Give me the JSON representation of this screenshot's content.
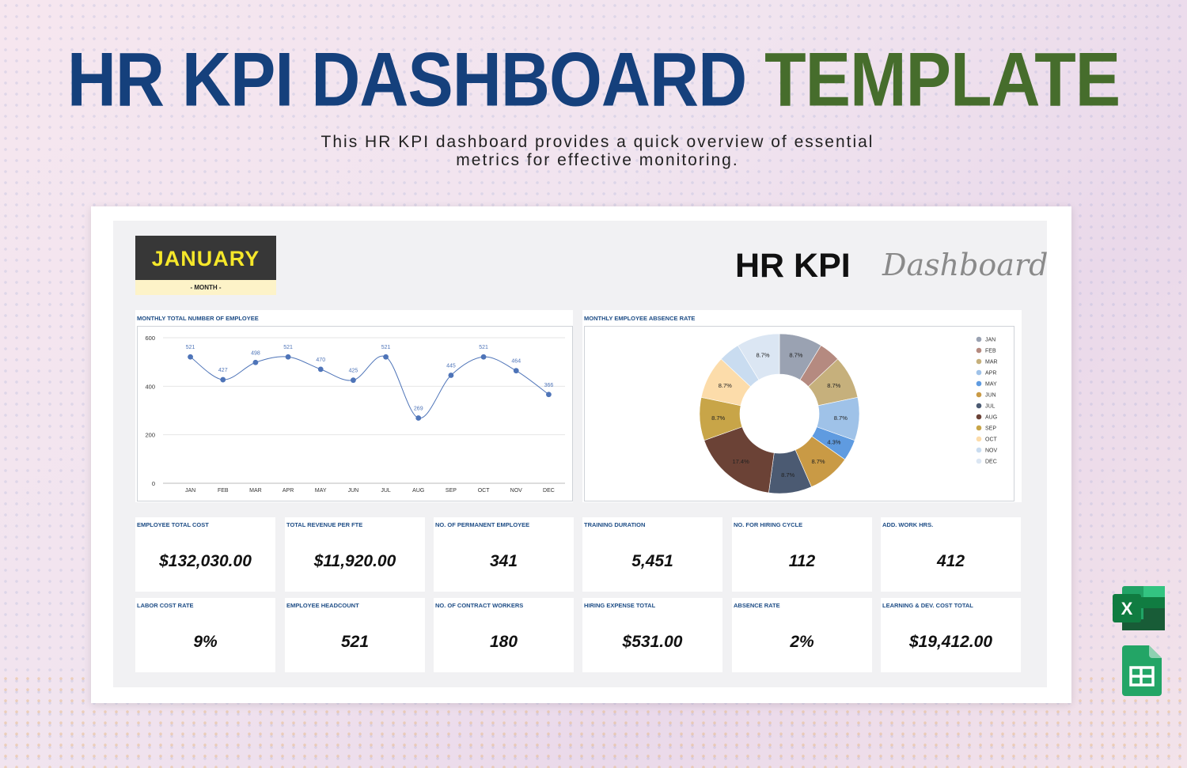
{
  "header": {
    "headline_part1": "HR KPI DASHBOARD",
    "headline_part2": "TEMPLATE",
    "subtitle_line1": "This HR KPI dashboard provides a quick overview of essential",
    "subtitle_line2": "metrics for effective monitoring."
  },
  "dashboard": {
    "month_value": "JANUARY",
    "month_label": "- MONTH -",
    "title_main": "HR KPI",
    "title_script": "Dashboard"
  },
  "colors": {
    "headline_blue": "#15407c",
    "headline_green": "#466d2c",
    "month_bg": "#373737",
    "month_text": "#f5e72a",
    "label_blue": "#1e4d86",
    "line_color": "#4e74b8"
  },
  "chart_data": [
    {
      "type": "line",
      "title": "MONTHLY TOTAL NUMBER OF EMPLOYEE",
      "categories": [
        "JAN",
        "FEB",
        "MAR",
        "APR",
        "MAY",
        "JUN",
        "JUL",
        "AUG",
        "SEP",
        "OCT",
        "NOV",
        "DEC"
      ],
      "values": [
        521,
        427,
        498,
        521,
        470,
        425,
        521,
        269,
        445,
        521,
        464,
        366
      ],
      "data_labels": [
        "521",
        "427",
        "498",
        "521",
        "470",
        "425",
        "521",
        "269",
        "445",
        "521",
        "464",
        "366"
      ],
      "y_ticks": [
        "0",
        "200",
        "400",
        "600"
      ],
      "ylim": [
        0,
        600
      ],
      "grid": true,
      "smooth": true
    },
    {
      "type": "pie",
      "donut": true,
      "title": "MONTHLY EMPLOYEE ABSENCE RATE",
      "labels": [
        "JAN",
        "FEB",
        "MAR",
        "APR",
        "MAY",
        "JUN",
        "JUL",
        "AUG",
        "SEP",
        "OCT",
        "NOV",
        "DEC"
      ],
      "values": [
        8.7,
        4.3,
        8.7,
        8.7,
        4.3,
        8.7,
        8.7,
        17.4,
        8.7,
        8.7,
        4.3,
        8.7
      ],
      "slice_labels": [
        "8.7%",
        "",
        "8.7%",
        "8.7%",
        "4.3%",
        "8.7%",
        "8.7%",
        "17.4%",
        "8.7%",
        "8.7%",
        "",
        "8.7%"
      ],
      "colors": [
        "#9aa2b2",
        "#b58a80",
        "#c6b07c",
        "#9fc2e8",
        "#5f9be0",
        "#c99a45",
        "#4b5a72",
        "#6b4236",
        "#c8a548",
        "#fcdcaa",
        "#c9dcf0",
        "#dbe6f3"
      ],
      "legend_position": "right"
    }
  ],
  "kpis": [
    {
      "label": "EMPLOYEE TOTAL COST",
      "value": "$132,030.00"
    },
    {
      "label": "TOTAL REVENUE PER FTE",
      "value": "$11,920.00"
    },
    {
      "label": "NO. OF PERMANENT EMPLOYEE",
      "value": "341"
    },
    {
      "label": "TRAINING DURATION",
      "value": "5,451"
    },
    {
      "label": "NO. FOR HIRING CYCLE",
      "value": "112"
    },
    {
      "label": "ADD. WORK HRS.",
      "value": "412"
    },
    {
      "label": "LABOR COST RATE",
      "value": "9%"
    },
    {
      "label": "EMPLOYEE HEADCOUNT",
      "value": "521"
    },
    {
      "label": "NO. OF CONTRACT WORKERS",
      "value": "180"
    },
    {
      "label": "HIRING EXPENSE TOTAL",
      "value": "$531.00"
    },
    {
      "label": "ABSENCE RATE",
      "value": "2%"
    },
    {
      "label": "LEARNING & DEV. COST TOTAL",
      "value": "$19,412.00"
    }
  ],
  "icons": {
    "excel": {
      "name": "excel-icon",
      "letter": "X"
    },
    "sheets": {
      "name": "google-sheets-icon"
    }
  }
}
